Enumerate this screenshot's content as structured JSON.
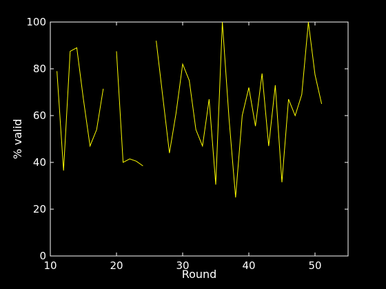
{
  "chart_data": {
    "type": "line",
    "title": "",
    "xlabel": "Round",
    "ylabel": "% valid",
    "xlim": [
      10,
      55
    ],
    "ylim": [
      0,
      100
    ],
    "xticks": [
      10,
      20,
      30,
      40,
      50
    ],
    "yticks": [
      0,
      20,
      40,
      60,
      80,
      100
    ],
    "grid": false,
    "legend": "none",
    "colors": {
      "background": "#000000",
      "axes": "#ffffff",
      "line": "#ffff00"
    },
    "series": [
      {
        "segments": [
          {
            "x": [
              11,
              12,
              13,
              14,
              15,
              16,
              17,
              18
            ],
            "y": [
              79,
              36.5,
              87.5,
              89,
              67,
              47,
              54,
              71.5
            ]
          },
          {
            "x": [
              20,
              21,
              22,
              23,
              24
            ],
            "y": [
              87.5,
              40,
              41.5,
              40.5,
              38.5
            ]
          },
          {
            "x": [
              26,
              27,
              28,
              29,
              30,
              31,
              32,
              33,
              34,
              35,
              36,
              37,
              38,
              39,
              40,
              41,
              42,
              43,
              44,
              45,
              46,
              47,
              48,
              49,
              50,
              51
            ],
            "y": [
              92,
              68,
              44,
              61,
              82,
              75,
              54,
              47,
              67,
              30.5,
              100,
              59,
              25,
              60,
              72,
              55.5,
              78,
              47,
              73,
              31.5,
              67,
              60,
              69,
              100,
              77.5,
              65
            ]
          }
        ]
      }
    ]
  }
}
